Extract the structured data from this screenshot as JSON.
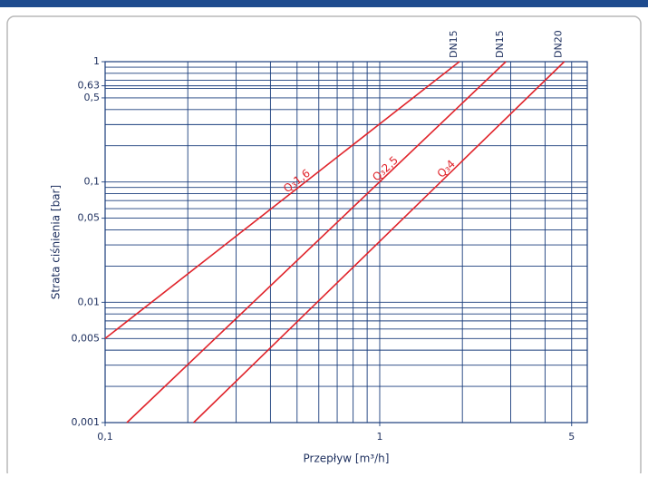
{
  "chart_data": {
    "type": "line",
    "xlabel": "Przepływ [m³/h]",
    "ylabel": "Strata ciśnienia [bar]",
    "log_x": true,
    "log_y": true,
    "grid": true,
    "xlim": [
      0.1,
      5.7
    ],
    "ylim": [
      0.001,
      1
    ],
    "xticks": [
      {
        "value": 0.1,
        "label": "0,1"
      },
      1,
      5
    ],
    "yticks": [
      1,
      {
        "value": 0.63,
        "label": "0,63"
      },
      {
        "value": 0.5,
        "label": "0,5"
      },
      {
        "value": 0.1,
        "label": "0,1"
      },
      {
        "value": 0.05,
        "label": "0,05"
      },
      {
        "value": 0.01,
        "label": "0,01"
      },
      {
        "value": 0.005,
        "label": "0,005"
      },
      {
        "value": 0.001,
        "label": "0,001"
      }
    ],
    "xgrid": [
      0.2,
      0.3,
      0.4,
      0.5,
      0.6,
      0.7,
      0.8,
      0.9,
      1,
      2,
      3,
      4,
      5
    ],
    "ygrid": [
      0.002,
      0.003,
      0.004,
      0.005,
      0.006,
      0.007,
      0.008,
      0.009,
      0.01,
      0.02,
      0.03,
      0.04,
      0.05,
      0.06,
      0.07,
      0.08,
      0.09,
      0.1,
      0.2,
      0.3,
      0.4,
      0.5,
      0.6,
      0.63,
      0.7,
      0.8,
      0.9
    ],
    "series": [
      {
        "name": "Q₃1,6",
        "dn": "DN15",
        "color": "#e0242b",
        "x": [
          0.1,
          1.95
        ],
        "values": [
          0.005,
          1
        ],
        "label_x": 0.5
      },
      {
        "name": "Q₃2,5",
        "dn": "DN15",
        "color": "#e0242b",
        "x": [
          0.12,
          2.88
        ],
        "values": [
          0.001,
          1
        ],
        "label_x": 1.05
      },
      {
        "name": "Q₃4",
        "dn": "DN20",
        "color": "#e0242b",
        "x": [
          0.21,
          4.7
        ],
        "values": [
          0.001,
          1
        ],
        "label_x": 1.75
      }
    ]
  }
}
